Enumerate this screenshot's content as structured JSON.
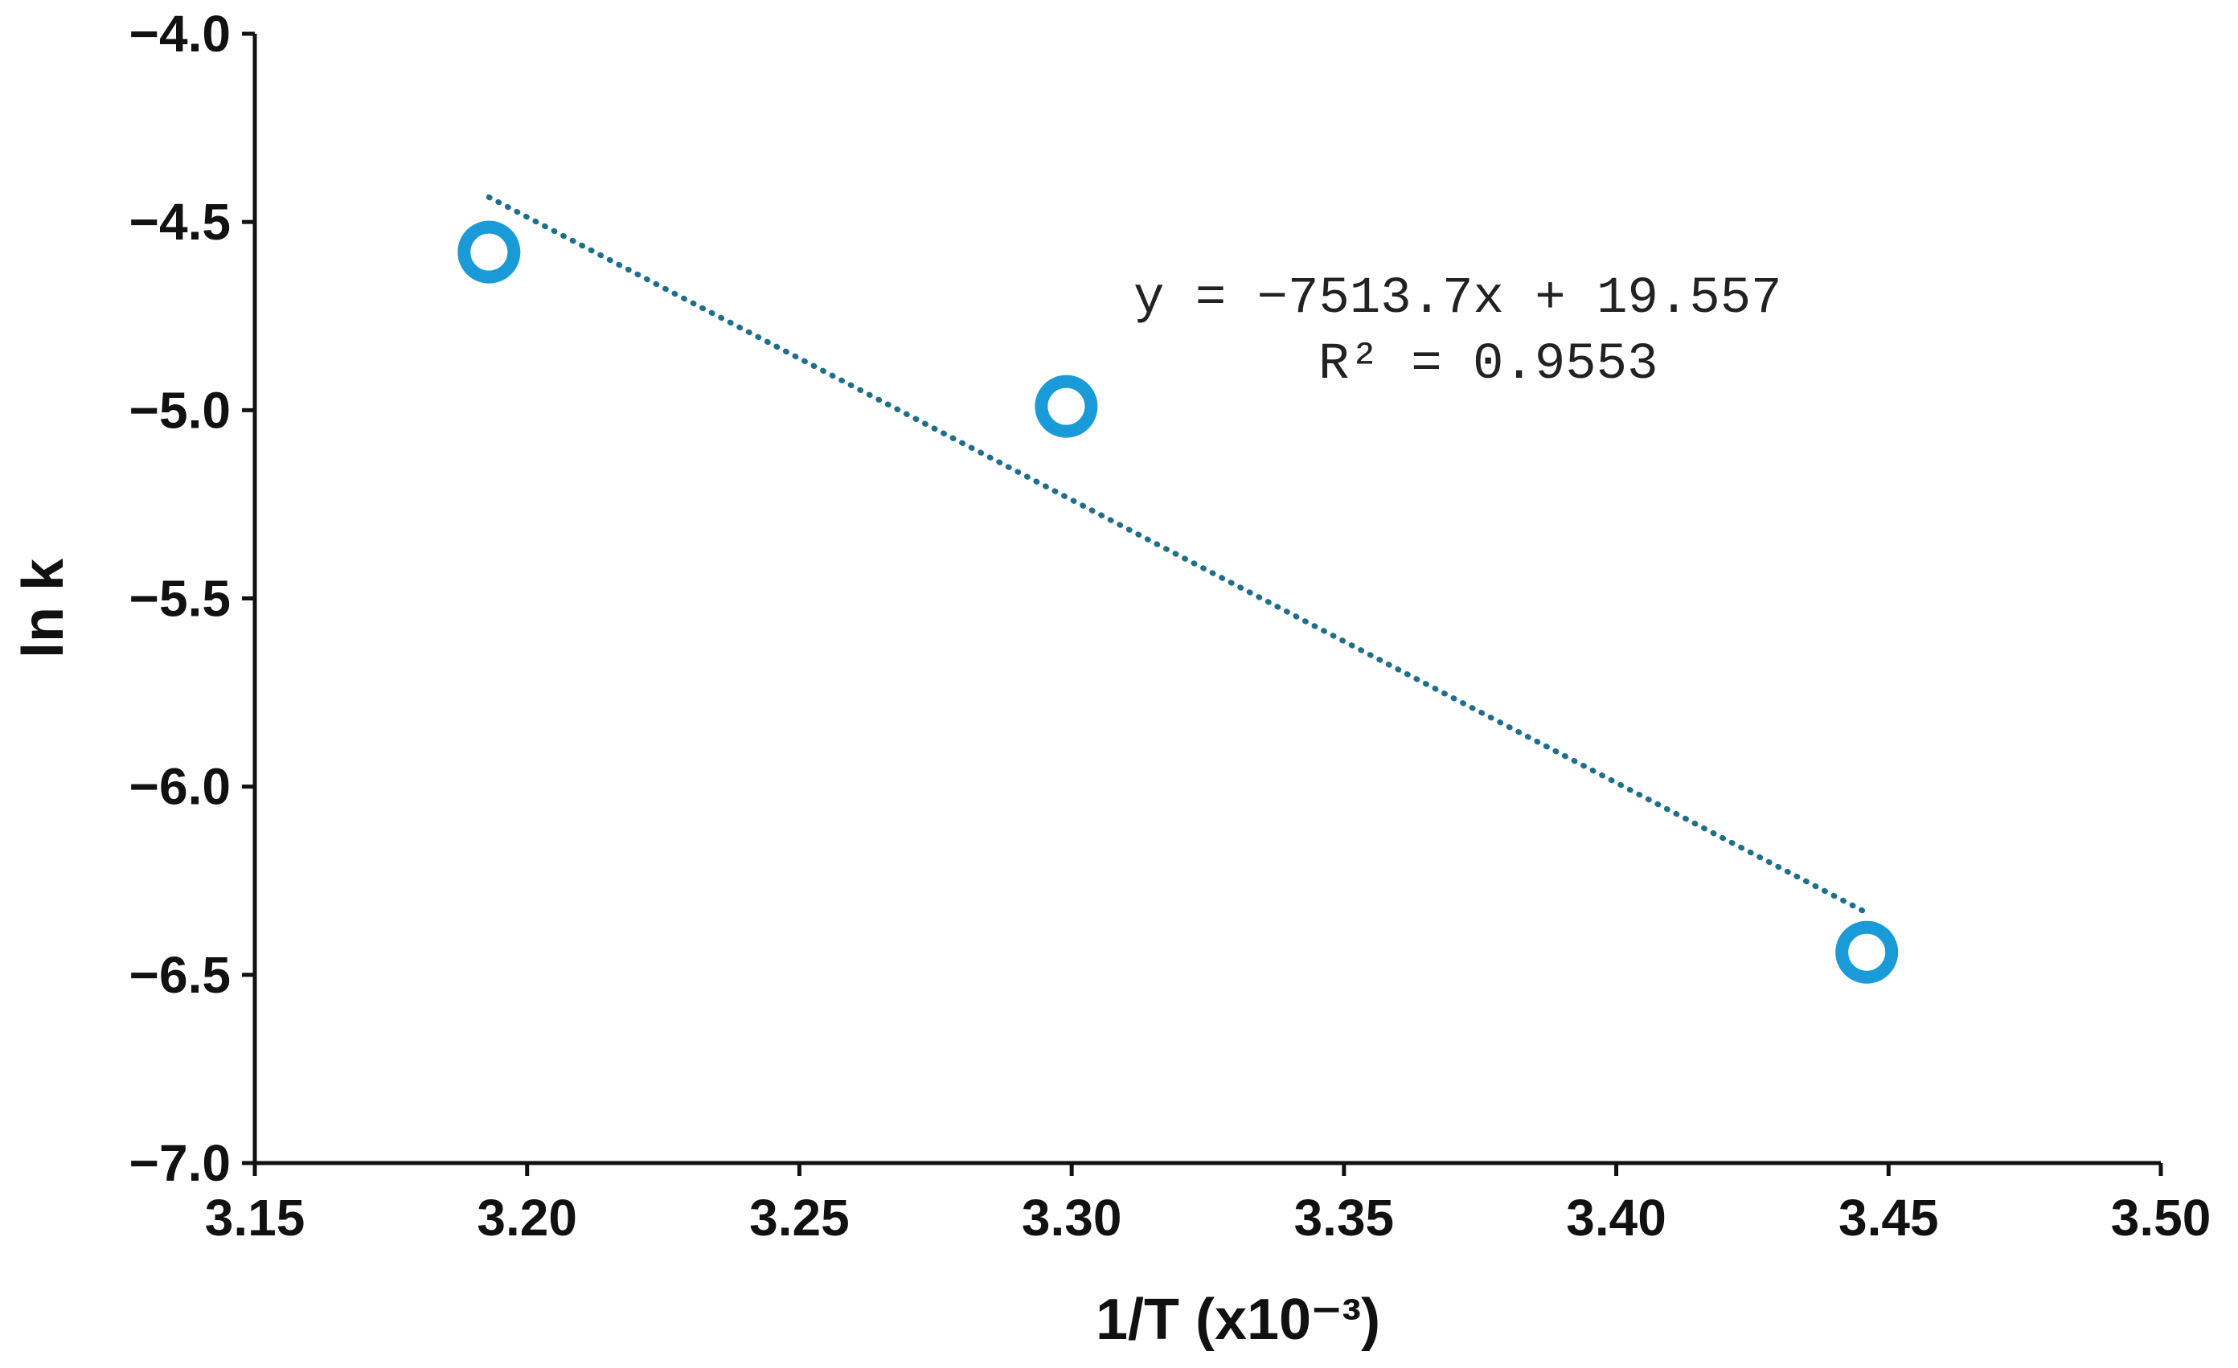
{
  "chart_data": {
    "type": "scatter",
    "title": "",
    "xlabel": "1/T (x10⁻³)",
    "ylabel": "ln k",
    "xlim": [
      3.15,
      3.5
    ],
    "ylim": [
      -7.0,
      -4.0
    ],
    "x_ticks": [
      "3.15",
      "3.20",
      "3.25",
      "3.30",
      "3.35",
      "3.40",
      "3.45",
      "3.50"
    ],
    "y_ticks": [
      "−4.0",
      "−4.5",
      "−5.0",
      "−5.5",
      "−6.0",
      "−6.5",
      "−7.0"
    ],
    "series": [
      {
        "x": [
          3.193,
          3.299,
          3.446
        ],
        "y": [
          -4.58,
          -4.99,
          -6.44
        ],
        "color": "#1a9bd7",
        "marker": "open-circle"
      }
    ],
    "trendline": {
      "style": "dotted",
      "color": "#1f6f8b",
      "slope": -7513.7,
      "intercept": 19.557,
      "x_range": [
        3.193,
        3.446
      ],
      "equation": "y = −7513.7x + 19.557",
      "r_squared": "R² = 0.9553"
    },
    "grid": false,
    "legend": "none"
  }
}
